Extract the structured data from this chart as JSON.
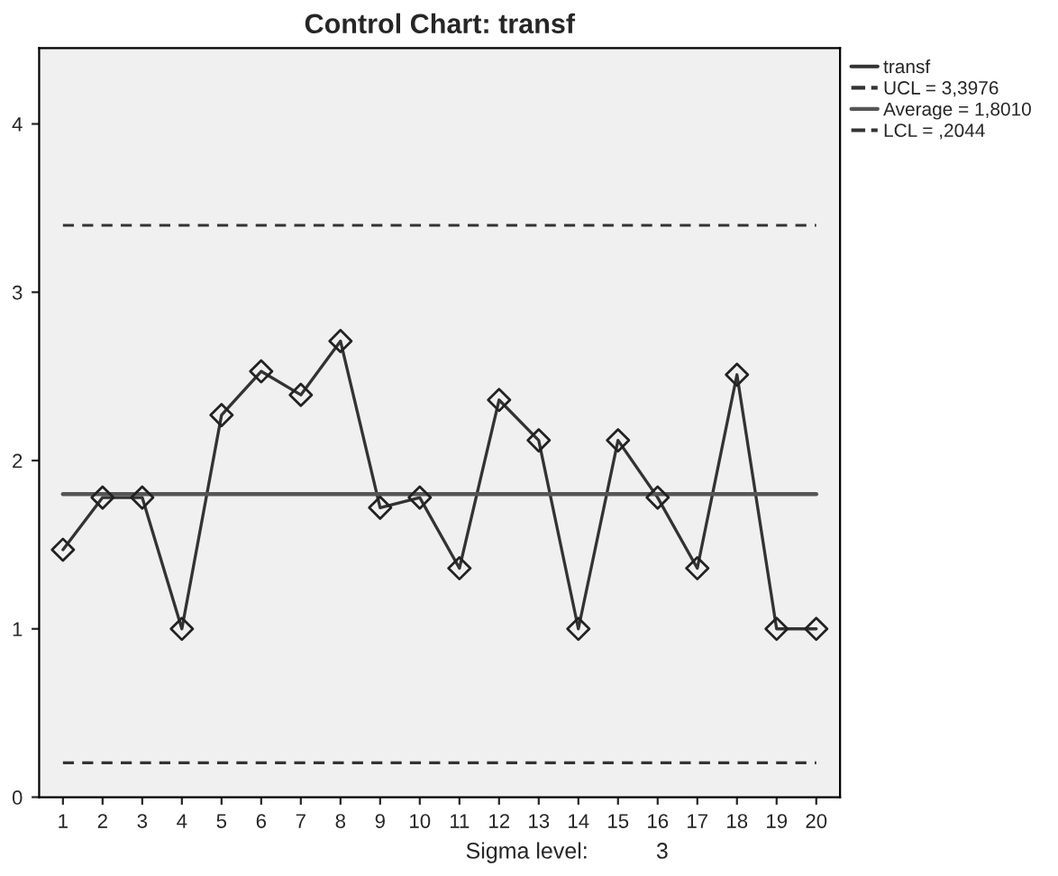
{
  "chart_data": {
    "type": "line",
    "title": "Control Chart: transf",
    "categories": [
      "1",
      "2",
      "3",
      "4",
      "5",
      "6",
      "7",
      "8",
      "9",
      "10",
      "11",
      "12",
      "13",
      "14",
      "15",
      "16",
      "17",
      "18",
      "19",
      "20"
    ],
    "series": [
      {
        "name": "transf",
        "color": "#333333",
        "values": [
          1.47,
          1.78,
          1.78,
          1.0,
          2.27,
          2.53,
          2.39,
          2.71,
          1.72,
          1.78,
          1.36,
          2.36,
          2.12,
          1.0,
          2.12,
          1.78,
          1.36,
          2.51,
          1.0,
          1.0
        ]
      }
    ],
    "ref_lines": [
      {
        "axis": "y",
        "value": 3.3976,
        "label": "UCL = 3,3976",
        "color": "#333333",
        "line_style": "dashed"
      },
      {
        "axis": "y",
        "value": 1.801,
        "label": "Average = 1,8010",
        "color": "#555555",
        "line_style": "solid"
      },
      {
        "axis": "y",
        "value": 0.2044,
        "label": "LCL = ,2044",
        "color": "#333333",
        "line_style": "dashed"
      }
    ],
    "ylim": [
      0,
      4.45
    ],
    "yticks": [
      0,
      1,
      2,
      3,
      4
    ],
    "annotations": [
      "Sigma level:",
      "3"
    ],
    "marker": "diamond",
    "line_style": "solid",
    "grid": false,
    "legend": "top right"
  }
}
